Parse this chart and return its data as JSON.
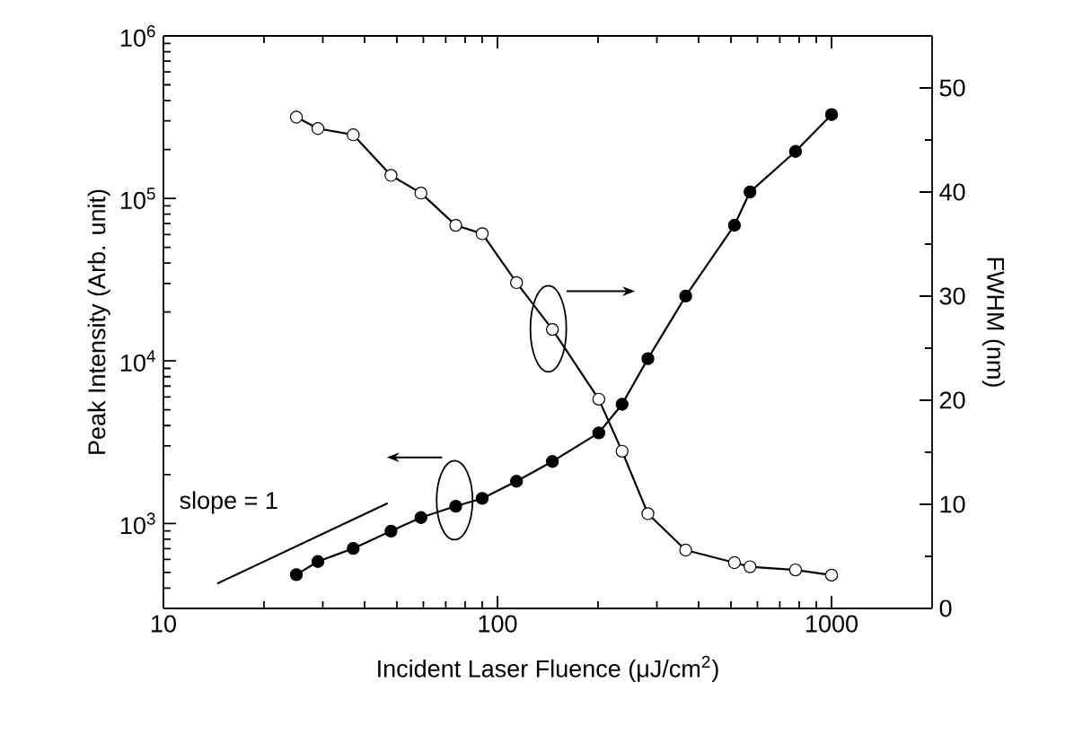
{
  "chart_data": {
    "type": "line",
    "xlabel": "Incident Laser Fluence (μJ/cm$^{2}$)",
    "ylabel": "Peak Intensity (Arb. unit)",
    "y2label": "FWHM (nm)",
    "x": [
      25,
      29,
      37,
      48,
      59,
      75,
      90,
      114,
      146,
      201,
      236,
      282,
      366,
      512,
      570,
      780,
      1000
    ],
    "log": "xy",
    "marker": "circle",
    "xlim": [
      10,
      2000
    ],
    "xticks": [
      10,
      100,
      1000
    ],
    "ylim": [
      300,
      1000000
    ],
    "yticks": [
      {
        "value": 1000,
        "label": "10$^{3}$"
      },
      {
        "value": 10000,
        "label": "10$^{4}$"
      },
      {
        "value": 100000,
        "label": "10$^{5}$"
      },
      {
        "value": 1000000,
        "label": "10$^{6}$"
      }
    ],
    "y2lim": [
      0,
      55
    ],
    "y2ticks": [
      0,
      10,
      20,
      30,
      40,
      50
    ],
    "series": [
      {
        "color": "#000000",
        "values": [
          484,
          583,
          702,
          897,
          1087,
          1277,
          1425,
          1820,
          2406,
          3606,
          5408,
          10330,
          25060,
          68400,
          109700,
          194500,
          328000
        ]
      },
      {
        "color": "#ffffff",
        "axis": "y2",
        "values": [
          47.2,
          46.1,
          45.5,
          41.6,
          39.9,
          36.8,
          36.0,
          31.3,
          26.8,
          20.1,
          15.1,
          9.1,
          5.6,
          4.4,
          4.0,
          3.7,
          3.2
        ]
      },
      {
        "color": "#000000",
        "marker": "none",
        "x": [
          14.5,
          46.9
        ],
        "values": [
          427,
          1331
        ]
      }
    ],
    "annotations": [
      "slope = 1"
    ]
  }
}
